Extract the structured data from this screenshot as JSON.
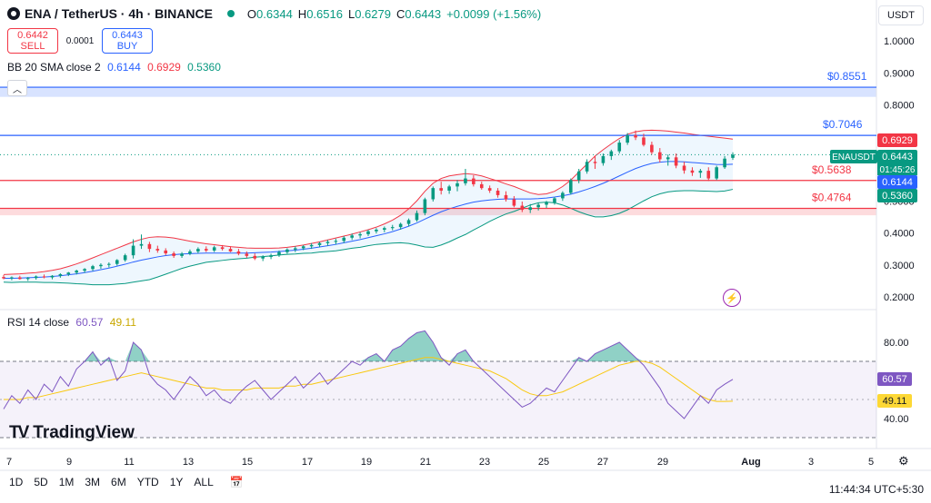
{
  "header": {
    "symbol": "ENA / TetherUS · 4h · BINANCE",
    "o_label": "O",
    "o": "0.6344",
    "h_label": "H",
    "h": "0.6516",
    "l_label": "L",
    "l": "0.6279",
    "c_label": "C",
    "c": "0.6443",
    "change": "+0.0099 (+1.56%)",
    "currency": "USDT"
  },
  "trade": {
    "sell_price": "0.6442",
    "sell_label": "SELL",
    "spread": "0.0001",
    "buy_price": "0.6443",
    "buy_label": "BUY"
  },
  "bb": {
    "label": "BB 20 SMA close 2",
    "basis": "0.6144",
    "upper": "0.6929",
    "lower": "0.5360"
  },
  "rsi": {
    "label": "RSI 14 close",
    "value": "60.57",
    "ma": "49.11"
  },
  "time_buttons": [
    "1D",
    "5D",
    "1M",
    "3M",
    "6M",
    "YTD",
    "1Y",
    "ALL"
  ],
  "clock": "11:44:34 UTC+5:30",
  "brand": "TradingView",
  "colors": {
    "up": "#089981",
    "down": "#f23645",
    "basis": "#2962ff",
    "rsi": "#7e57c2",
    "rsi_ma": "#fdd835",
    "h_line_blue": "#2962ff",
    "h_line_red": "#f23645"
  },
  "chart_data": {
    "type": "candlestick",
    "title": "ENA / TetherUS · 4h · BINANCE",
    "x_ticks": [
      "7",
      "9",
      "11",
      "13",
      "15",
      "17",
      "19",
      "21",
      "23",
      "25",
      "27",
      "29",
      "Aug",
      "3",
      "5"
    ],
    "y_ticks": [
      "1.0000",
      "0.9000",
      "0.8000",
      "0.6000",
      "0.5000",
      "0.4000",
      "0.3000",
      "0.2000"
    ],
    "ylim": [
      0.18,
      1.04
    ],
    "last_price": "0.6443",
    "countdown": "01:45:26",
    "ticker": "ENAUSDT",
    "horizontal_lines": [
      {
        "label": "$0.8551",
        "value": 0.8551,
        "color": "blue"
      },
      {
        "label": "$0.7046",
        "value": 0.7046,
        "color": "blue"
      },
      {
        "label": "$0.5638",
        "value": 0.5638,
        "color": "red"
      },
      {
        "label": "$0.4764",
        "value": 0.4764,
        "color": "red"
      }
    ],
    "zones": [
      {
        "from": 0.825,
        "to": 0.855,
        "color": "blue"
      },
      {
        "from": 0.455,
        "to": 0.48,
        "color": "red"
      }
    ],
    "price_tags": [
      {
        "value": "0.6929",
        "color": "red"
      },
      {
        "value": "0.6443",
        "color": "green"
      },
      {
        "value": "0.6144",
        "color": "blue"
      },
      {
        "value": "0.5360",
        "color": "green"
      }
    ],
    "candles": [
      [
        0.262,
        0.268,
        0.255,
        0.258
      ],
      [
        0.258,
        0.264,
        0.252,
        0.261
      ],
      [
        0.261,
        0.266,
        0.254,
        0.256
      ],
      [
        0.256,
        0.262,
        0.25,
        0.259
      ],
      [
        0.259,
        0.267,
        0.254,
        0.264
      ],
      [
        0.264,
        0.27,
        0.258,
        0.261
      ],
      [
        0.261,
        0.268,
        0.255,
        0.266
      ],
      [
        0.266,
        0.274,
        0.26,
        0.271
      ],
      [
        0.271,
        0.278,
        0.265,
        0.276
      ],
      [
        0.276,
        0.285,
        0.27,
        0.282
      ],
      [
        0.282,
        0.29,
        0.275,
        0.287
      ],
      [
        0.287,
        0.3,
        0.281,
        0.296
      ],
      [
        0.296,
        0.305,
        0.288,
        0.3
      ],
      [
        0.3,
        0.308,
        0.292,
        0.303
      ],
      [
        0.303,
        0.318,
        0.298,
        0.315
      ],
      [
        0.315,
        0.335,
        0.31,
        0.33
      ],
      [
        0.33,
        0.38,
        0.32,
        0.36
      ],
      [
        0.36,
        0.395,
        0.35,
        0.365
      ],
      [
        0.365,
        0.372,
        0.34,
        0.35
      ],
      [
        0.35,
        0.36,
        0.338,
        0.345
      ],
      [
        0.345,
        0.352,
        0.33,
        0.336
      ],
      [
        0.336,
        0.342,
        0.322,
        0.328
      ],
      [
        0.328,
        0.34,
        0.322,
        0.335
      ],
      [
        0.335,
        0.348,
        0.33,
        0.342
      ],
      [
        0.342,
        0.355,
        0.336,
        0.35
      ],
      [
        0.35,
        0.358,
        0.34,
        0.345
      ],
      [
        0.345,
        0.36,
        0.34,
        0.355
      ],
      [
        0.355,
        0.362,
        0.345,
        0.35
      ],
      [
        0.35,
        0.358,
        0.34,
        0.342
      ],
      [
        0.342,
        0.35,
        0.33,
        0.335
      ],
      [
        0.335,
        0.342,
        0.322,
        0.328
      ],
      [
        0.328,
        0.336,
        0.315,
        0.32
      ],
      [
        0.32,
        0.33,
        0.312,
        0.325
      ],
      [
        0.325,
        0.335,
        0.318,
        0.33
      ],
      [
        0.33,
        0.345,
        0.325,
        0.34
      ],
      [
        0.34,
        0.352,
        0.335,
        0.348
      ],
      [
        0.348,
        0.358,
        0.34,
        0.352
      ],
      [
        0.352,
        0.362,
        0.346,
        0.358
      ],
      [
        0.358,
        0.368,
        0.35,
        0.362
      ],
      [
        0.362,
        0.372,
        0.355,
        0.368
      ],
      [
        0.368,
        0.378,
        0.36,
        0.372
      ],
      [
        0.372,
        0.382,
        0.364,
        0.375
      ],
      [
        0.375,
        0.39,
        0.368,
        0.385
      ],
      [
        0.385,
        0.398,
        0.378,
        0.392
      ],
      [
        0.392,
        0.402,
        0.383,
        0.396
      ],
      [
        0.396,
        0.41,
        0.39,
        0.405
      ],
      [
        0.405,
        0.415,
        0.398,
        0.41
      ],
      [
        0.41,
        0.42,
        0.402,
        0.415
      ],
      [
        0.415,
        0.425,
        0.408,
        0.418
      ],
      [
        0.418,
        0.432,
        0.41,
        0.428
      ],
      [
        0.428,
        0.445,
        0.42,
        0.44
      ],
      [
        0.44,
        0.47,
        0.435,
        0.462
      ],
      [
        0.462,
        0.51,
        0.455,
        0.505
      ],
      [
        0.505,
        0.545,
        0.498,
        0.54
      ],
      [
        0.54,
        0.56,
        0.52,
        0.532
      ],
      [
        0.532,
        0.55,
        0.522,
        0.545
      ],
      [
        0.545,
        0.565,
        0.53,
        0.555
      ],
      [
        0.555,
        0.6,
        0.548,
        0.57
      ],
      [
        0.57,
        0.58,
        0.545,
        0.552
      ],
      [
        0.552,
        0.56,
        0.535,
        0.54
      ],
      [
        0.54,
        0.548,
        0.525,
        0.532
      ],
      [
        0.532,
        0.54,
        0.51,
        0.518
      ],
      [
        0.518,
        0.53,
        0.498,
        0.505
      ],
      [
        0.505,
        0.515,
        0.48,
        0.485
      ],
      [
        0.485,
        0.498,
        0.465,
        0.472
      ],
      [
        0.472,
        0.49,
        0.462,
        0.48
      ],
      [
        0.48,
        0.495,
        0.47,
        0.488
      ],
      [
        0.488,
        0.5,
        0.478,
        0.495
      ],
      [
        0.495,
        0.512,
        0.488,
        0.508
      ],
      [
        0.508,
        0.53,
        0.5,
        0.525
      ],
      [
        0.525,
        0.57,
        0.52,
        0.565
      ],
      [
        0.565,
        0.6,
        0.555,
        0.592
      ],
      [
        0.592,
        0.63,
        0.585,
        0.622
      ],
      [
        0.622,
        0.64,
        0.6,
        0.618
      ],
      [
        0.618,
        0.648,
        0.61,
        0.64
      ],
      [
        0.64,
        0.66,
        0.628,
        0.655
      ],
      [
        0.655,
        0.69,
        0.648,
        0.682
      ],
      [
        0.682,
        0.712,
        0.675,
        0.705
      ],
      [
        0.705,
        0.72,
        0.69,
        0.698
      ],
      [
        0.698,
        0.71,
        0.67,
        0.675
      ],
      [
        0.675,
        0.685,
        0.645,
        0.652
      ],
      [
        0.652,
        0.665,
        0.62,
        0.63
      ],
      [
        0.63,
        0.645,
        0.61,
        0.636
      ],
      [
        0.636,
        0.648,
        0.602,
        0.61
      ],
      [
        0.61,
        0.622,
        0.585,
        0.595
      ],
      [
        0.595,
        0.605,
        0.578,
        0.588
      ],
      [
        0.588,
        0.6,
        0.572,
        0.594
      ],
      [
        0.594,
        0.605,
        0.562,
        0.57
      ],
      [
        0.57,
        0.61,
        0.565,
        0.605
      ],
      [
        0.605,
        0.64,
        0.6,
        0.632
      ],
      [
        0.6344,
        0.6516,
        0.6279,
        0.6443
      ]
    ],
    "bb_upper": [
      0.27,
      0.271,
      0.272,
      0.274,
      0.276,
      0.279,
      0.283,
      0.288,
      0.295,
      0.303,
      0.312,
      0.322,
      0.332,
      0.342,
      0.352,
      0.362,
      0.372,
      0.38,
      0.386,
      0.388,
      0.387,
      0.384,
      0.379,
      0.374,
      0.37,
      0.366,
      0.363,
      0.36,
      0.357,
      0.355,
      0.353,
      0.352,
      0.352,
      0.352,
      0.353,
      0.355,
      0.358,
      0.362,
      0.367,
      0.372,
      0.378,
      0.384,
      0.39,
      0.396,
      0.403,
      0.41,
      0.418,
      0.428,
      0.44,
      0.455,
      0.475,
      0.5,
      0.53,
      0.555,
      0.57,
      0.578,
      0.582,
      0.585,
      0.583,
      0.578,
      0.57,
      0.562,
      0.553,
      0.545,
      0.535,
      0.525,
      0.52,
      0.522,
      0.53,
      0.545,
      0.565,
      0.59,
      0.615,
      0.64,
      0.66,
      0.678,
      0.695,
      0.708,
      0.716,
      0.72,
      0.721,
      0.72,
      0.718,
      0.715,
      0.712,
      0.708,
      0.705,
      0.702,
      0.699,
      0.696,
      0.6929
    ],
    "bb_basis": [
      0.258,
      0.258,
      0.259,
      0.26,
      0.261,
      0.262,
      0.264,
      0.266,
      0.269,
      0.272,
      0.276,
      0.28,
      0.285,
      0.29,
      0.296,
      0.302,
      0.309,
      0.315,
      0.32,
      0.325,
      0.329,
      0.332,
      0.334,
      0.335,
      0.336,
      0.337,
      0.337,
      0.337,
      0.337,
      0.337,
      0.337,
      0.338,
      0.339,
      0.34,
      0.342,
      0.344,
      0.346,
      0.349,
      0.352,
      0.356,
      0.36,
      0.364,
      0.369,
      0.374,
      0.379,
      0.385,
      0.391,
      0.397,
      0.404,
      0.412,
      0.421,
      0.431,
      0.443,
      0.455,
      0.466,
      0.475,
      0.483,
      0.49,
      0.496,
      0.5,
      0.503,
      0.505,
      0.506,
      0.506,
      0.506,
      0.506,
      0.507,
      0.509,
      0.512,
      0.516,
      0.521,
      0.528,
      0.536,
      0.545,
      0.555,
      0.566,
      0.578,
      0.59,
      0.601,
      0.61,
      0.617,
      0.621,
      0.623,
      0.623,
      0.622,
      0.62,
      0.618,
      0.616,
      0.614,
      0.6135,
      0.6144
    ],
    "bb_lower": [
      0.246,
      0.245,
      0.246,
      0.246,
      0.246,
      0.245,
      0.245,
      0.244,
      0.243,
      0.241,
      0.24,
      0.238,
      0.238,
      0.238,
      0.24,
      0.242,
      0.246,
      0.25,
      0.254,
      0.262,
      0.271,
      0.28,
      0.289,
      0.296,
      0.302,
      0.308,
      0.311,
      0.314,
      0.317,
      0.319,
      0.321,
      0.324,
      0.326,
      0.328,
      0.331,
      0.333,
      0.334,
      0.336,
      0.337,
      0.34,
      0.342,
      0.344,
      0.348,
      0.352,
      0.355,
      0.36,
      0.364,
      0.366,
      0.368,
      0.369,
      0.367,
      0.362,
      0.356,
      0.355,
      0.362,
      0.372,
      0.384,
      0.395,
      0.409,
      0.422,
      0.436,
      0.448,
      0.459,
      0.467,
      0.477,
      0.487,
      0.494,
      0.496,
      0.494,
      0.487,
      0.477,
      0.466,
      0.457,
      0.45,
      0.45,
      0.454,
      0.461,
      0.472,
      0.486,
      0.5,
      0.513,
      0.522,
      0.528,
      0.531,
      0.532,
      0.532,
      0.531,
      0.53,
      0.529,
      0.531,
      0.536
    ],
    "rsi": [
      45,
      52,
      48,
      55,
      50,
      58,
      54,
      62,
      57,
      66,
      70,
      75,
      68,
      72,
      60,
      65,
      80,
      76,
      63,
      58,
      55,
      50,
      56,
      62,
      58,
      52,
      55,
      50,
      48,
      53,
      57,
      60,
      55,
      50,
      54,
      58,
      62,
      56,
      60,
      64,
      58,
      62,
      66,
      70,
      68,
      72,
      74,
      70,
      76,
      78,
      82,
      85,
      86,
      80,
      72,
      68,
      74,
      76,
      70,
      66,
      62,
      58,
      54,
      50,
      46,
      48,
      52,
      56,
      54,
      60,
      66,
      72,
      70,
      74,
      76,
      78,
      80,
      76,
      72,
      68,
      62,
      56,
      48,
      44,
      40,
      46,
      52,
      48,
      55,
      58,
      60.57
    ],
    "rsi_ma": [
      50,
      50,
      50,
      51,
      51,
      52,
      53,
      54,
      55,
      56,
      57,
      58,
      59,
      60,
      61,
      62,
      63,
      64,
      63,
      62,
      61,
      60,
      59,
      58,
      57,
      56,
      56,
      55,
      55,
      55,
      55,
      56,
      56,
      56,
      56,
      57,
      57,
      58,
      58,
      59,
      60,
      61,
      62,
      63,
      64,
      65,
      66,
      67,
      68,
      69,
      70,
      71,
      72,
      72,
      71,
      70,
      69,
      68,
      67,
      66,
      65,
      63,
      61,
      58,
      55,
      53,
      52,
      52,
      53,
      54,
      56,
      58,
      60,
      62,
      64,
      66,
      68,
      69,
      70,
      70,
      69,
      67,
      64,
      61,
      58,
      55,
      52,
      50,
      49,
      49,
      49.11
    ],
    "rsi_ylim": [
      25,
      95
    ],
    "rsi_ticks": [
      "80.00",
      "40.00"
    ]
  }
}
